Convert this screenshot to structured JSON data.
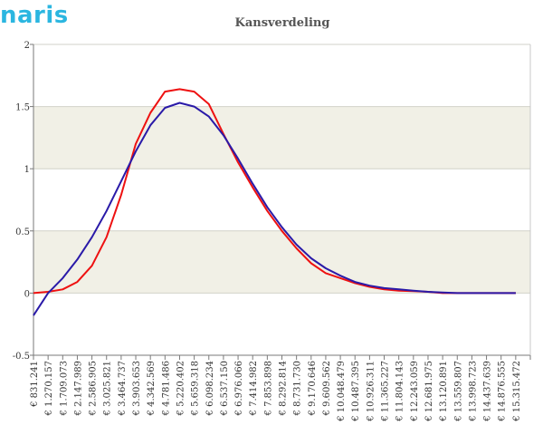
{
  "logo": {
    "text": "naris",
    "color": "#2bb6e0"
  },
  "chart_data": {
    "type": "line",
    "title": "Kansverdeling",
    "xlabel": "",
    "ylabel": "",
    "ylim": [
      -0.5,
      2
    ],
    "yticks": [
      "-0.5",
      "0",
      "0.5",
      "1",
      "1.5",
      "2"
    ],
    "ytick_values": [
      -0.5,
      0,
      0.5,
      1,
      1.5,
      2
    ],
    "grid": "horizontal alternating bands",
    "band_color": "#f1f0e6",
    "categories": [
      "€ 831.241",
      "€ 1.270.157",
      "€ 1.709.073",
      "€ 2.147.989",
      "€ 2.586.905",
      "€ 3.025.821",
      "€ 3.464.737",
      "€ 3.903.653",
      "€ 4.342.569",
      "€ 4.781.486",
      "€ 5.220.402",
      "€ 5.659.318",
      "€ 6.098.234",
      "€ 6.537.150",
      "€ 6.976.066",
      "€ 7.414.982",
      "€ 7.853.898",
      "€ 8.292.814",
      "€ 8.731.730",
      "€ 9.170.646",
      "€ 9.609.562",
      "€ 10.048.479",
      "€ 10.487.395",
      "€ 10.926.311",
      "€ 11.365.227",
      "€ 11.804.143",
      "€ 12.243.059",
      "€ 12.681.975",
      "€ 13.120.891",
      "€ 13.559.807",
      "€ 13.998.723",
      "€ 14.437.639",
      "€ 14.876.555",
      "€ 15.315.472"
    ],
    "series": [
      {
        "color": "#ee1111",
        "values": [
          0.0,
          0.01,
          0.03,
          0.09,
          0.22,
          0.45,
          0.79,
          1.2,
          1.45,
          1.62,
          1.64,
          1.62,
          1.52,
          1.28,
          1.05,
          0.85,
          0.66,
          0.5,
          0.36,
          0.24,
          0.16,
          0.12,
          0.08,
          0.05,
          0.03,
          0.02,
          0.015,
          0.01,
          0.0,
          0.0,
          0.0,
          0.0,
          0.0,
          0.0
        ]
      },
      {
        "color": "#2a1aa8",
        "values": [
          -0.18,
          0.0,
          0.12,
          0.27,
          0.45,
          0.66,
          0.9,
          1.14,
          1.35,
          1.49,
          1.53,
          1.5,
          1.42,
          1.27,
          1.08,
          0.88,
          0.69,
          0.53,
          0.39,
          0.28,
          0.2,
          0.14,
          0.09,
          0.06,
          0.04,
          0.03,
          0.02,
          0.01,
          0.005,
          0.0,
          0.0,
          0.0,
          0.0,
          0.0
        ]
      }
    ]
  }
}
